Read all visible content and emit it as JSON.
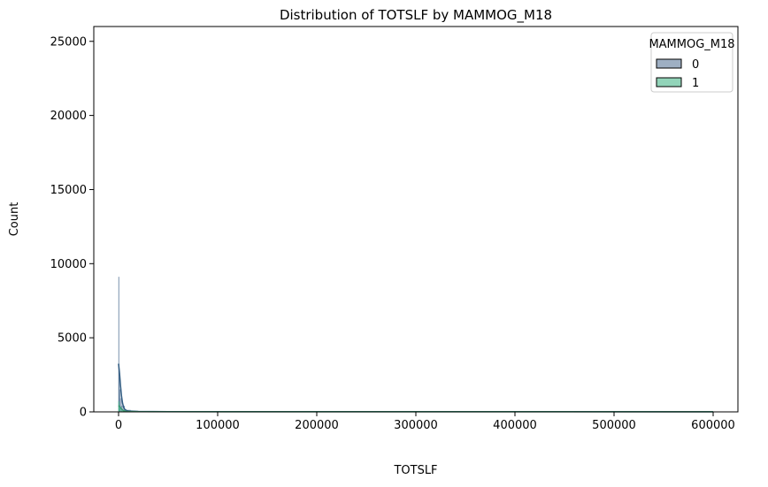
{
  "chart_data": {
    "type": "histogram",
    "title": "Distribution of TOTSLF by MAMMOG_M18",
    "xlabel": "TOTSLF",
    "ylabel": "Count",
    "xlim": [
      -25000,
      625000
    ],
    "ylim": [
      0,
      26000
    ],
    "x_ticks": [
      0,
      100000,
      200000,
      300000,
      400000,
      500000,
      600000
    ],
    "y_ticks": [
      0,
      5000,
      10000,
      15000,
      20000,
      25000
    ],
    "legend": {
      "title": "MAMMOG_M18",
      "placement": "top-right",
      "entries": [
        "0",
        "1"
      ]
    },
    "series": [
      {
        "name": "0",
        "color": "#5d7a9b",
        "bins": [
          {
            "x0": 0,
            "x1": 100,
            "count": 9100
          },
          {
            "x0": 100,
            "x1": 300,
            "count": 3200
          },
          {
            "x0": 300,
            "x1": 800,
            "count": 2300
          },
          {
            "x0": 800,
            "x1": 1600,
            "count": 1500
          },
          {
            "x0": 1600,
            "x1": 3000,
            "count": 900
          },
          {
            "x0": 3000,
            "x1": 6000,
            "count": 400
          },
          {
            "x0": 6000,
            "x1": 12000,
            "count": 120
          },
          {
            "x0": 12000,
            "x1": 600000,
            "count": 10
          }
        ],
        "kde": [
          [
            0,
            3250
          ],
          [
            1000,
            2600
          ],
          [
            2000,
            1750
          ],
          [
            3000,
            1050
          ],
          [
            4000,
            600
          ],
          [
            5000,
            330
          ],
          [
            6000,
            190
          ],
          [
            8000,
            90
          ],
          [
            10000,
            60
          ],
          [
            20000,
            30
          ],
          [
            50000,
            15
          ],
          [
            600000,
            10
          ]
        ]
      },
      {
        "name": "1",
        "color": "#49b88a",
        "bins": [
          {
            "x0": 0,
            "x1": 300,
            "count": 700
          },
          {
            "x0": 300,
            "x1": 1000,
            "count": 420
          },
          {
            "x0": 1000,
            "x1": 3000,
            "count": 200
          },
          {
            "x0": 3000,
            "x1": 8000,
            "count": 60
          },
          {
            "x0": 8000,
            "x1": 600000,
            "count": 5
          }
        ],
        "kde": [
          [
            0,
            430
          ],
          [
            1500,
            330
          ],
          [
            3000,
            200
          ],
          [
            5000,
            80
          ],
          [
            8000,
            30
          ],
          [
            20000,
            12
          ],
          [
            600000,
            5
          ]
        ]
      }
    ],
    "grid": false
  }
}
